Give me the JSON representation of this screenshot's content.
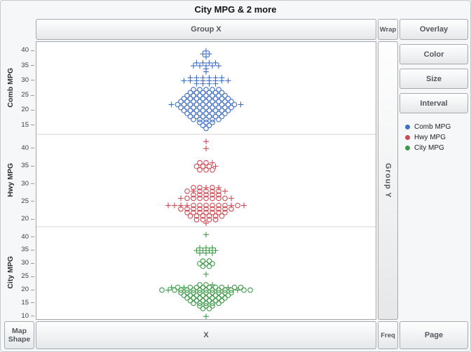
{
  "title": "City MPG & 2 more",
  "zones": {
    "group_x": "Group X",
    "wrap": "Wrap",
    "group_y": "Group Y",
    "x": "X",
    "freq": "Freq",
    "map": "Map",
    "shape": "Shape"
  },
  "buttons": {
    "overlay": "Overlay",
    "color": "Color",
    "size": "Size",
    "interval": "Interval",
    "page": "Page"
  },
  "legend": [
    {
      "label": "Comb MPG",
      "color": "#3f6fc4"
    },
    {
      "label": "Hwy MPG",
      "color": "#cf4a54"
    },
    {
      "label": "City MPG",
      "color": "#3f9a49"
    }
  ],
  "chart_data": {
    "type": "scatter",
    "subtype": "stacked-jittered-dot-plot",
    "title": "City MPG & 2 more",
    "x_axis_label": "X",
    "legend_position": "right",
    "grid": false,
    "marker_key": {
      "+": "plus marker",
      "o": "open circle marker"
    },
    "point_spacing_px": 9,
    "panels": [
      {
        "name": "Comb MPG",
        "color": "#3f6fc4",
        "axis_min": 12,
        "axis_max": 43,
        "ticks": [
          40,
          35,
          30,
          25,
          20,
          15
        ],
        "rows": [
          [
            40,
            "+"
          ],
          [
            39,
            "++"
          ],
          [
            38,
            "+"
          ],
          [
            36,
            "++++"
          ],
          [
            35,
            "+++++"
          ],
          [
            34,
            "+"
          ],
          [
            33,
            "+"
          ],
          [
            31,
            "++++++"
          ],
          [
            30,
            "++++++++"
          ],
          [
            29,
            "++++"
          ],
          [
            27,
            "ooooo"
          ],
          [
            26,
            "oooooo"
          ],
          [
            25,
            "ooooooo"
          ],
          [
            24,
            "oooooooo"
          ],
          [
            23,
            "ooooooooo"
          ],
          [
            22,
            "+oooooooooo+"
          ],
          [
            21,
            "ooooooooo"
          ],
          [
            20,
            "oooooooo"
          ],
          [
            19,
            "ooooooo"
          ],
          [
            18,
            "oooooo"
          ],
          [
            17,
            "ooooo"
          ],
          [
            16,
            "ooo"
          ],
          [
            15,
            "oo"
          ],
          [
            14,
            "o"
          ]
        ]
      },
      {
        "name": "Hwy MPG",
        "color": "#cf4a54",
        "axis_min": 18,
        "axis_max": 44,
        "ticks": [
          40,
          35,
          30,
          25,
          20
        ],
        "rows": [
          [
            42,
            "+"
          ],
          [
            40,
            "+"
          ],
          [
            36,
            "oo+"
          ],
          [
            35,
            "ooo+"
          ],
          [
            34,
            "ooo"
          ],
          [
            29,
            "oo+o+"
          ],
          [
            28,
            "o+oooo+"
          ],
          [
            27,
            "ooooo"
          ],
          [
            26,
            "+ooooooo+"
          ],
          [
            24,
            "++++oooooo+o+"
          ],
          [
            23,
            "ooooooooo"
          ],
          [
            22,
            "ooooooo"
          ],
          [
            21,
            "oooooo"
          ],
          [
            20,
            "oooo"
          ],
          [
            19,
            "+"
          ]
        ]
      },
      {
        "name": "City MPG",
        "color": "#3f9a49",
        "axis_min": 9,
        "axis_max": 44,
        "ticks": [
          40,
          35,
          30,
          25,
          20,
          15,
          10
        ],
        "rows": [
          [
            41,
            "+"
          ],
          [
            36,
            "+++"
          ],
          [
            35,
            "++++"
          ],
          [
            34,
            "+++"
          ],
          [
            31,
            "oo"
          ],
          [
            30,
            "ooo"
          ],
          [
            29,
            "oo"
          ],
          [
            26,
            "+"
          ],
          [
            22,
            "oo+"
          ],
          [
            21,
            "+o+oooooo+oo"
          ],
          [
            20,
            "o+oooooooooo+oo"
          ],
          [
            19,
            "ooooooooo"
          ],
          [
            18,
            "oooooooo"
          ],
          [
            17,
            "ooooooo"
          ],
          [
            16,
            "oooooo"
          ],
          [
            15,
            "ooooo"
          ],
          [
            14,
            "ooo"
          ],
          [
            13,
            "oo"
          ],
          [
            10,
            "+"
          ]
        ]
      }
    ]
  }
}
